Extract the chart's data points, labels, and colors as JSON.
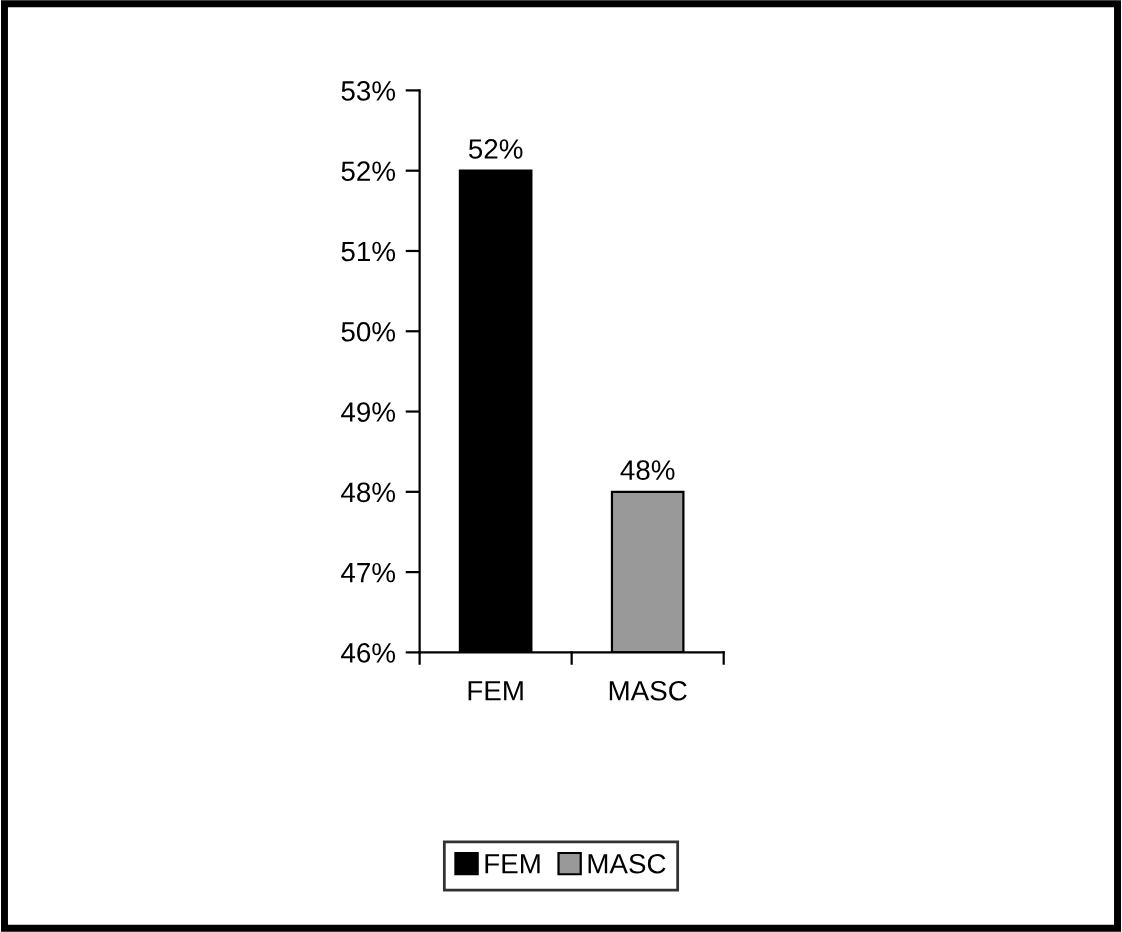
{
  "chart_data": {
    "type": "bar",
    "categories": [
      "FEM",
      "MASC"
    ],
    "series": [
      {
        "name": "FEM",
        "color": "#000000",
        "values": [
          52,
          null
        ],
        "value_labels": [
          "52%",
          null
        ]
      },
      {
        "name": "MASC",
        "color": "#999999",
        "values": [
          null,
          48
        ],
        "value_labels": [
          null,
          "48%"
        ]
      }
    ],
    "ylim": [
      46,
      53
    ],
    "yticks": [
      {
        "value": 46,
        "label": "46%"
      },
      {
        "value": 47,
        "label": "47%"
      },
      {
        "value": 48,
        "label": "48%"
      },
      {
        "value": 49,
        "label": "49%"
      },
      {
        "value": 50,
        "label": "50%"
      },
      {
        "value": 51,
        "label": "51%"
      },
      {
        "value": 52,
        "label": "52%"
      },
      {
        "value": 53,
        "label": "53%"
      }
    ],
    "grid": false,
    "legend": "bottom"
  }
}
